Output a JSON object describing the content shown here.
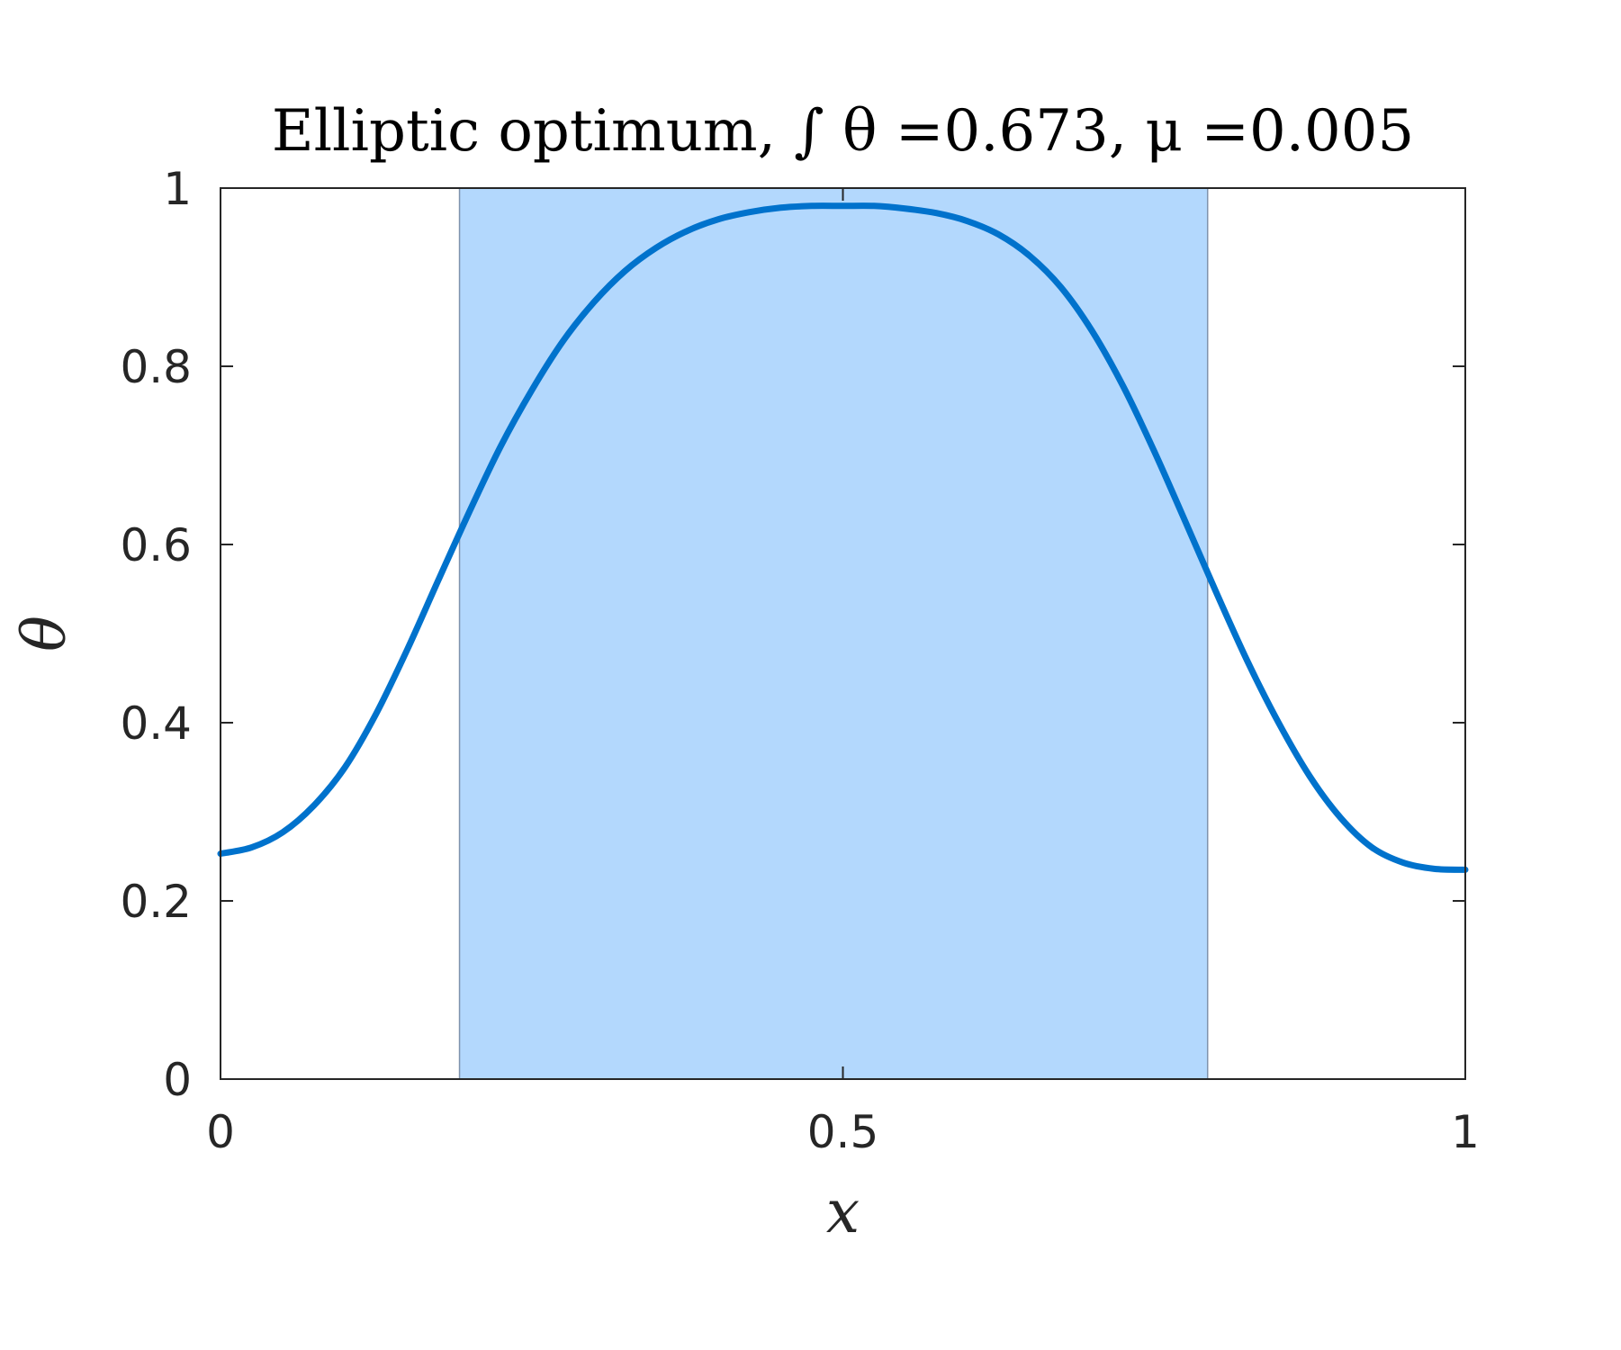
{
  "chart_data": {
    "type": "line",
    "title": "Elliptic optimum, ∫ θ =0.673, μ =0.005",
    "xlabel": "x",
    "ylabel": "θ",
    "xlim": [
      0,
      1
    ],
    "ylim": [
      0,
      1
    ],
    "x_ticks": [
      0,
      0.5,
      1
    ],
    "x_tick_labels": [
      "0",
      "0.5",
      "1"
    ],
    "y_ticks": [
      0,
      0.2,
      0.4,
      0.6,
      0.8,
      1
    ],
    "y_tick_labels": [
      "0",
      "0.2",
      "0.4",
      "0.6",
      "0.8",
      "1"
    ],
    "grid": false,
    "shaded_region": {
      "x_start": 0.192,
      "x_end": 0.793,
      "color": "#b3d8fd",
      "edge_color": "#7f93ad"
    },
    "series": [
      {
        "color": "#0072cc",
        "x": [
          0,
          0.025,
          0.05,
          0.075,
          0.1,
          0.125,
          0.15,
          0.175,
          0.2,
          0.225,
          0.25,
          0.275,
          0.3,
          0.325,
          0.35,
          0.375,
          0.4,
          0.425,
          0.45,
          0.475,
          0.5,
          0.525,
          0.55,
          0.575,
          0.6,
          0.625,
          0.65,
          0.675,
          0.7,
          0.725,
          0.75,
          0.775,
          0.8,
          0.825,
          0.85,
          0.875,
          0.9,
          0.925,
          0.95,
          0.975,
          1
        ],
        "y": [
          0.253,
          0.26,
          0.277,
          0.307,
          0.35,
          0.41,
          0.482,
          0.56,
          0.637,
          0.71,
          0.773,
          0.828,
          0.872,
          0.907,
          0.933,
          0.952,
          0.965,
          0.973,
          0.978,
          0.98,
          0.98,
          0.98,
          0.977,
          0.972,
          0.963,
          0.948,
          0.924,
          0.889,
          0.84,
          0.778,
          0.705,
          0.626,
          0.546,
          0.469,
          0.4,
          0.34,
          0.293,
          0.26,
          0.243,
          0.236,
          0.235
        ]
      }
    ]
  }
}
